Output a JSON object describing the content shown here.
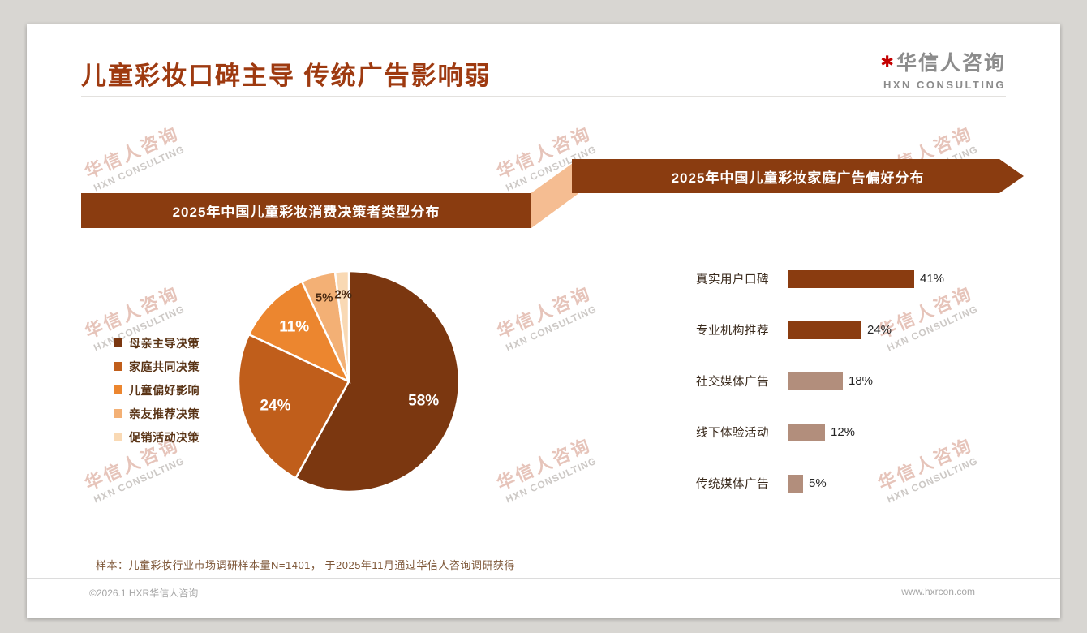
{
  "page": {
    "title": "儿童彩妆口碑主导 传统广告影响弱",
    "footnote": "样本：儿童彩妆行业市场调研样本量N=1401， 于2025年11月通过华信人咨询调研获得",
    "footer_left": "©2026.1 HXR华信人咨询",
    "footer_right": "www.hxrcon.com"
  },
  "logo": {
    "mark": "✱",
    "cn": "华信人咨询",
    "en": "HXN CONSULTING"
  },
  "watermark": {
    "cn": "华信人咨询",
    "en": "HXN CONSULTING"
  },
  "banners": {
    "left": "2025年中国儿童彩妆消费决策者类型分布",
    "right": "2025年中国儿童彩妆家庭广告偏好分布"
  },
  "colors": {
    "title_accent": "#9e3a10",
    "banner_brown": "#8a3c10",
    "connector_peach": "#f5bd92",
    "logo_red": "#c40000"
  },
  "chart_data": [
    {
      "type": "pie",
      "title": "2025年中国儿童彩妆消费决策者类型分布",
      "categories": [
        "母亲主导决策",
        "家庭共同决策",
        "儿童偏好影响",
        "亲友推荐决策",
        "促销活动决策"
      ],
      "values": [
        58,
        24,
        11,
        5,
        2
      ],
      "unit": "%",
      "colors": [
        "#7b3710",
        "#c05e1b",
        "#ec862f",
        "#f3b075",
        "#f9d9b4"
      ],
      "start_angle": "12-oclock",
      "direction": "clockwise",
      "legend_position": "left"
    },
    {
      "type": "bar",
      "orientation": "horizontal",
      "title": "2025年中国儿童彩妆家庭广告偏好分布",
      "categories": [
        "真实用户口碑",
        "专业机构推荐",
        "社交媒体广告",
        "线下体验活动",
        "传统媒体广告"
      ],
      "values": [
        41,
        24,
        18,
        12,
        5
      ],
      "unit": "%",
      "bar_colors": [
        "#8a3c10",
        "#8a3c10",
        "#b28e7c",
        "#b28e7c",
        "#b28e7c"
      ],
      "xlim": [
        0,
        45
      ],
      "grid": false
    }
  ]
}
